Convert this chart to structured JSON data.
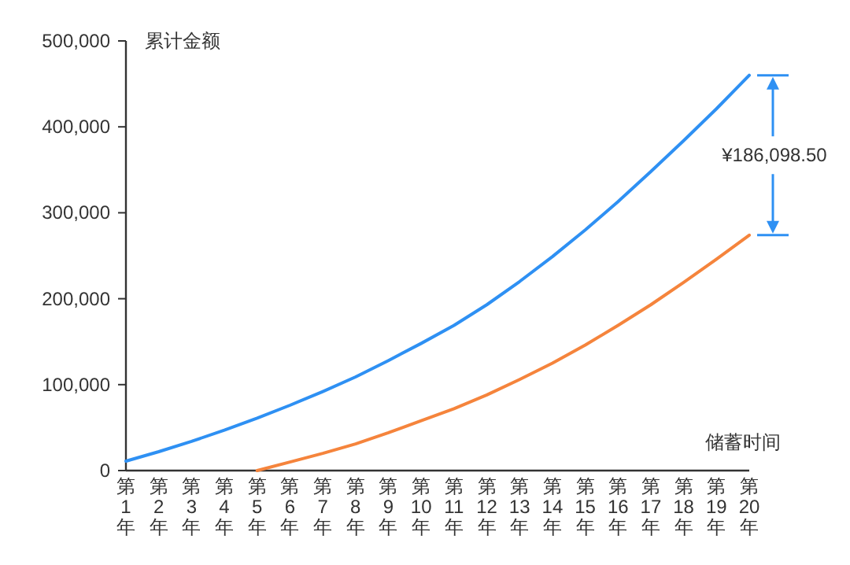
{
  "chart_data": {
    "type": "line",
    "ylabel": "累计金额",
    "xlabel": "储蓄时间",
    "categories": [
      "第1年",
      "第2年",
      "第3年",
      "第4年",
      "第5年",
      "第6年",
      "第7年",
      "第8年",
      "第9年",
      "第10年",
      "第11年",
      "第12年",
      "第13年",
      "第14年",
      "第15年",
      "第16年",
      "第17年",
      "第18年",
      "第19年",
      "第20年"
    ],
    "series": [
      {
        "color": "#2e90f3",
        "values": [
          11000,
          22000,
          34000,
          47000,
          61000,
          76000,
          92000,
          109000,
          128000,
          148000,
          169000,
          193000,
          220000,
          249000,
          280000,
          313000,
          348000,
          384000,
          421000,
          460000
        ]
      },
      {
        "color": "#f5843c",
        "values": [
          null,
          null,
          null,
          null,
          0,
          10000,
          20000,
          31000,
          44000,
          58000,
          72000,
          88000,
          106000,
          125000,
          146000,
          169000,
          193000,
          219000,
          246000,
          274000
        ]
      }
    ],
    "ylim": [
      0,
      500000
    ],
    "yticks": [
      {
        "value": 0,
        "label": "0"
      },
      {
        "value": 100000,
        "label": "100,000"
      },
      {
        "value": 200000,
        "label": "200,000"
      },
      {
        "value": 300000,
        "label": "300,000"
      },
      {
        "value": 400000,
        "label": "400,000"
      },
      {
        "value": 500000,
        "label": "500,000"
      }
    ],
    "marker": "none",
    "line_style": "solid",
    "annotations": [
      "¥186,098.50"
    ]
  }
}
